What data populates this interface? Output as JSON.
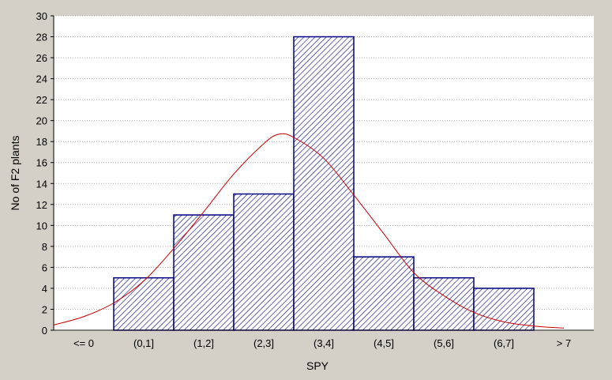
{
  "chart_data": {
    "type": "bar",
    "title": "",
    "xlabel": "SPY",
    "ylabel": "No of F2 plants",
    "categories": [
      "<= 0",
      "(0,1]",
      "(1,2]",
      "(2,3]",
      "(3,4]",
      "(4,5]",
      "(5,6]",
      "(6,7]",
      "> 7"
    ],
    "values": [
      0,
      5,
      11,
      13,
      28,
      7,
      5,
      4,
      0
    ],
    "ylim": [
      0,
      30
    ],
    "yticks": [
      0,
      2,
      4,
      6,
      8,
      10,
      12,
      14,
      16,
      18,
      20,
      22,
      24,
      26,
      28,
      30
    ],
    "grid": true,
    "normal_curve": {
      "description_color": "#cc0000",
      "peak_category_index": 3.75,
      "peak_value": 18.7,
      "points": [
        {
          "x": 0,
          "y": 0.5
        },
        {
          "x": 0.5,
          "y": 1.3
        },
        {
          "x": 1,
          "y": 2.6
        },
        {
          "x": 1.5,
          "y": 4.7
        },
        {
          "x": 2,
          "y": 7.8
        },
        {
          "x": 2.5,
          "y": 11.3
        },
        {
          "x": 3,
          "y": 14.9
        },
        {
          "x": 3.5,
          "y": 17.8
        },
        {
          "x": 3.75,
          "y": 18.7
        },
        {
          "x": 4,
          "y": 18.4
        },
        {
          "x": 4.5,
          "y": 16.4
        },
        {
          "x": 5,
          "y": 12.9
        },
        {
          "x": 5.5,
          "y": 9.2
        },
        {
          "x": 6,
          "y": 5.5
        },
        {
          "x": 6.5,
          "y": 3.3
        },
        {
          "x": 7,
          "y": 1.7
        },
        {
          "x": 7.5,
          "y": 0.8
        },
        {
          "x": 8,
          "y": 0.4
        },
        {
          "x": 8.5,
          "y": 0.2
        }
      ]
    },
    "colors": {
      "background": "#d4d0c8",
      "plot_background": "#ffffff",
      "bar_fill": "#ffffff",
      "bar_hatch": "#000080",
      "bar_stroke": "#000080",
      "curve": "#cc0000",
      "grid": "#b0b0b0"
    }
  }
}
